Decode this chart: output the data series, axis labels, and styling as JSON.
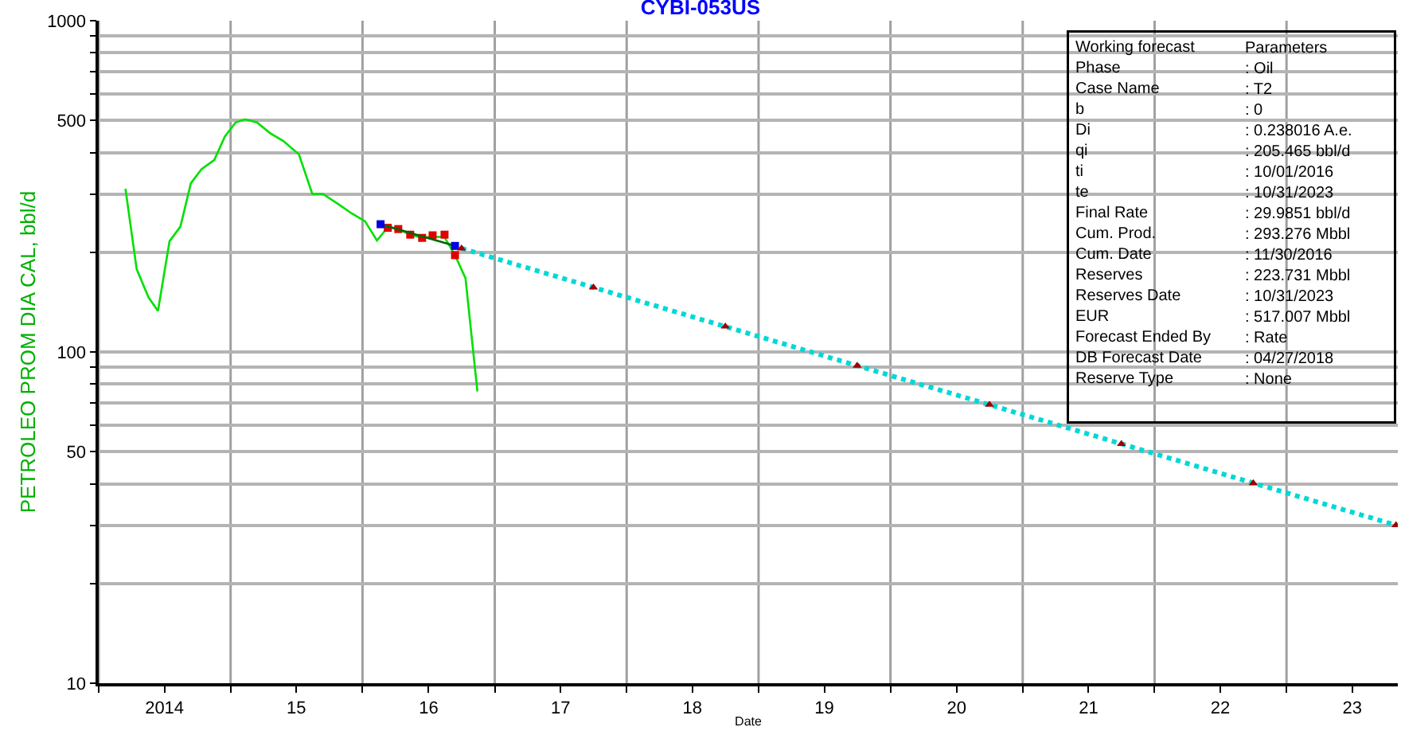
{
  "chart_data": {
    "type": "line",
    "title": "CYBI-053US",
    "xlabel": "Date",
    "ylabel": "PETROLEO PROM DIA CAL, bbl/d",
    "log": true,
    "grid": true,
    "xlim": [
      "2014-01-01",
      "2023-11-05"
    ],
    "ylim": [
      10,
      1000
    ],
    "xticks": [
      {
        "value": "2014-01-01",
        "label": null
      },
      {
        "value": "2014-07-02",
        "label": "2014"
      },
      {
        "value": "2015-01-01",
        "label": null
      },
      {
        "value": "2015-07-02",
        "label": "15"
      },
      {
        "value": "2016-01-01",
        "label": null
      },
      {
        "value": "2016-07-02",
        "label": "16"
      },
      {
        "value": "2017-01-01",
        "label": null
      },
      {
        "value": "2017-07-02",
        "label": "17"
      },
      {
        "value": "2018-01-01",
        "label": null
      },
      {
        "value": "2018-07-02",
        "label": "18"
      },
      {
        "value": "2019-01-01",
        "label": null
      },
      {
        "value": "2019-07-02",
        "label": "19"
      },
      {
        "value": "2020-01-01",
        "label": null
      },
      {
        "value": "2020-07-02",
        "label": "20"
      },
      {
        "value": "2021-01-01",
        "label": null
      },
      {
        "value": "2021-07-02",
        "label": "21"
      },
      {
        "value": "2022-01-01",
        "label": null
      },
      {
        "value": "2022-07-02",
        "label": "22"
      },
      {
        "value": "2023-01-01",
        "label": null
      },
      {
        "value": "2023-07-02",
        "label": "23"
      }
    ],
    "yticks": [
      10,
      {
        "value": 20,
        "label": null
      },
      {
        "value": 30,
        "label": null
      },
      {
        "value": 40,
        "label": null
      },
      50,
      {
        "value": 60,
        "label": null
      },
      {
        "value": 70,
        "label": null
      },
      {
        "value": 80,
        "label": null
      },
      {
        "value": 90,
        "label": null
      },
      100,
      {
        "value": 200,
        "label": null
      },
      {
        "value": 300,
        "label": null
      },
      {
        "value": 400,
        "label": null
      },
      500,
      {
        "value": 600,
        "label": null
      },
      {
        "value": 700,
        "label": null
      },
      {
        "value": 800,
        "label": null
      },
      {
        "value": 900,
        "label": null
      },
      1000
    ],
    "series": [
      {
        "color": "#00e000",
        "marker": "none",
        "line_style": "solid",
        "x": [
          "2014-03-16",
          "2014-04-16",
          "2014-05-19",
          "2014-06-14",
          "2014-07-16",
          "2014-08-15",
          "2014-09-13",
          "2014-10-12",
          "2014-11-17",
          "2014-12-16",
          "2015-01-15",
          "2015-02-10",
          "2015-03-15",
          "2015-04-20",
          "2015-05-26",
          "2015-07-09",
          "2015-08-15",
          "2015-09-13",
          "2015-10-27",
          "2015-12-02",
          "2016-01-08",
          "2016-02-10",
          "2016-03-11",
          "2016-04-09",
          "2016-05-12",
          "2016-06-14",
          "2016-07-13",
          "2016-08-15",
          "2016-09-13",
          "2016-10-12",
          "2016-11-14"
        ],
        "values": [
          311,
          178,
          146,
          133,
          216,
          239,
          323,
          356,
          380,
          447,
          493,
          504,
          493,
          458,
          434,
          395,
          300,
          300,
          279,
          262,
          248,
          217,
          238,
          235,
          226,
          221,
          223,
          222,
          196,
          167,
          76
        ]
      },
      {
        "type": "scatter",
        "color": "#e00000",
        "marker": "square",
        "x": [
          "2016-03-11",
          "2016-04-09",
          "2016-05-12",
          "2016-06-14",
          "2016-07-13",
          "2016-08-15",
          "2016-09-13"
        ],
        "values": [
          237,
          235,
          226,
          221,
          225,
          226,
          196
        ]
      },
      {
        "color": "#006400",
        "marker": "none",
        "line_style": "solid",
        "x": [
          "2016-02-20",
          "2016-09-13"
        ],
        "values": [
          243,
          209
        ]
      },
      {
        "type": "scatter",
        "color": "#0000e0",
        "marker": "square",
        "x": [
          "2016-02-20",
          "2016-09-13"
        ],
        "values": [
          243,
          209
        ]
      },
      {
        "type": "line",
        "color": "#00d8d8",
        "marker": "none",
        "line_style": "dotted",
        "x": [
          "2016-10-01",
          "2017-10-01",
          "2018-10-01",
          "2019-10-01",
          "2020-10-01",
          "2021-10-01",
          "2022-10-01",
          "2023-10-31"
        ],
        "values": [
          205.5,
          156.6,
          119.3,
          90.9,
          69.3,
          52.8,
          40.2,
          30.0
        ]
      },
      {
        "type": "scatter",
        "color": "#a00000",
        "marker": "triangle",
        "x": [
          "2016-10-01",
          "2017-10-01",
          "2018-10-01",
          "2019-10-01",
          "2020-10-01",
          "2021-10-01",
          "2022-10-01",
          "2023-10-31"
        ],
        "values": [
          205.5,
          156.6,
          119.3,
          90.9,
          69.3,
          52.8,
          40.2,
          30.0
        ]
      }
    ],
    "annotations": [
      "Working forecast\nPhase\nCase Name\nb\nDi\nqi\nti\nte\nFinal Rate\nCum. Prod.\nCum. Date\nReserves\nReserves Date\nEUR\nForecast Ended By\nDB Forecast Date\nReserve Type",
      "Parameters\n: Oil\n: T2\n: 0\n: 0.238016 A.e.\n: 205.465 bbl/d\n: 10/01/2016\n: 10/31/2023\n: 29.9851 bbl/d\n: 293.276 Mbbl\n: 11/30/2016\n: 223.731 Mbbl\n: 10/31/2023\n: 517.007 Mbbl\n: Rate\n: 04/27/2018\n: None"
    ]
  }
}
